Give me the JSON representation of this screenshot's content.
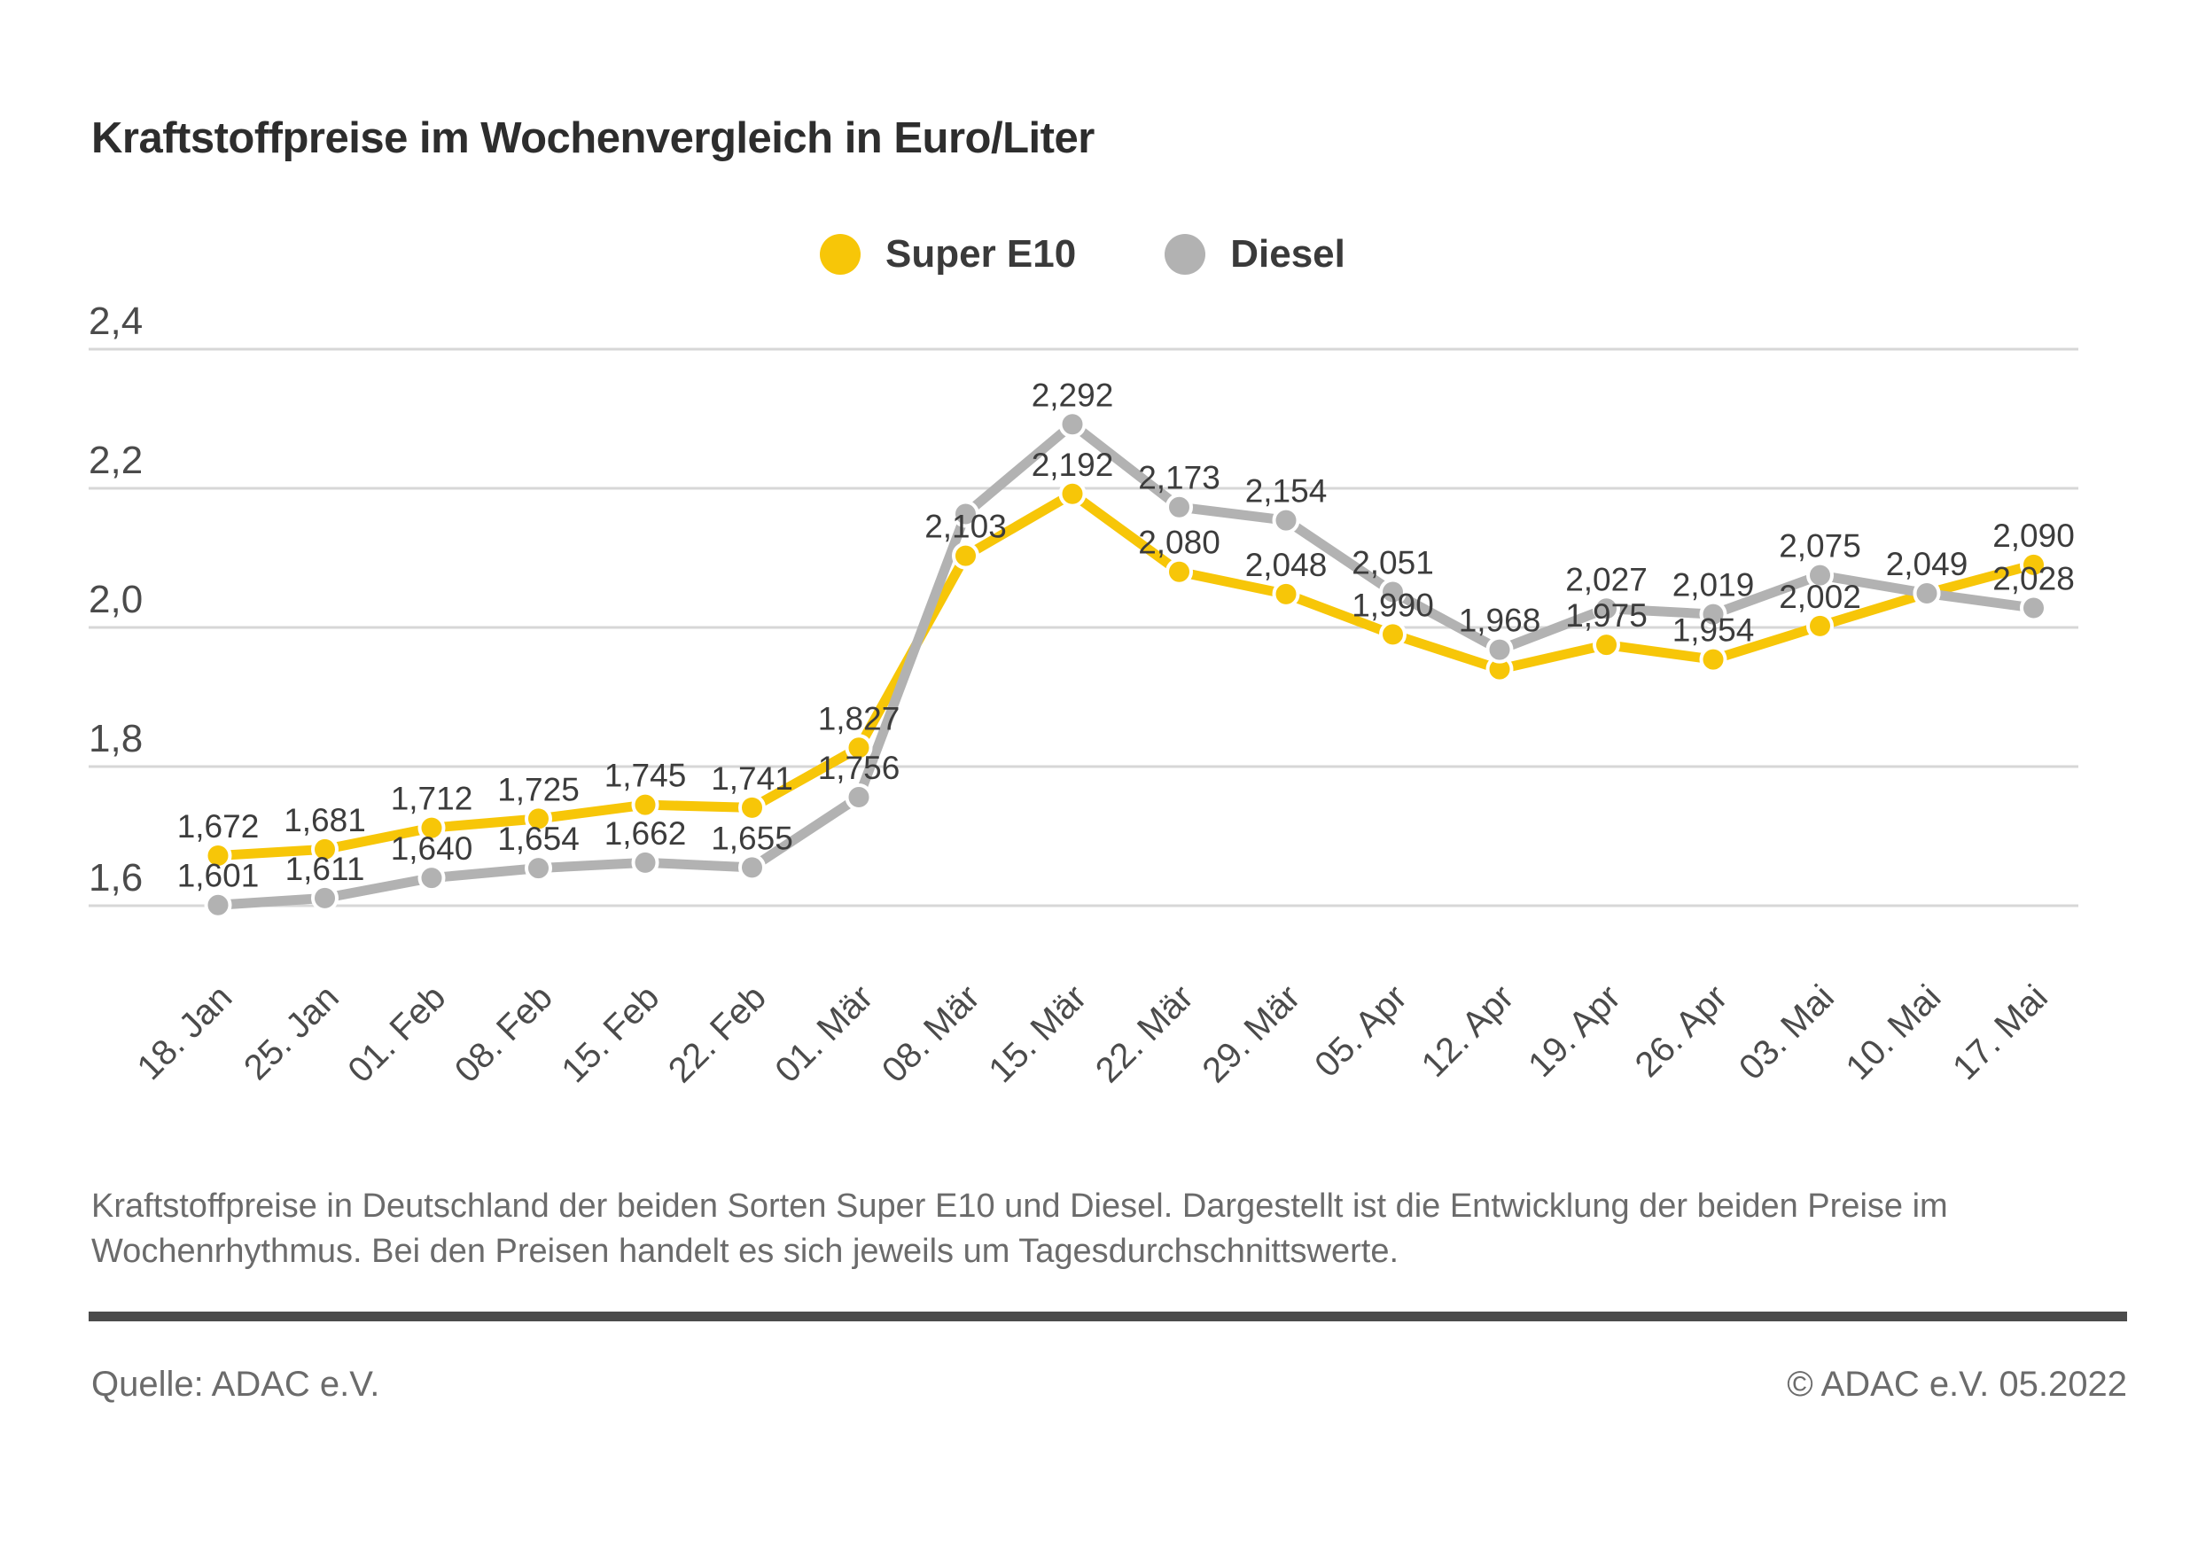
{
  "header": {
    "title": "Kraftstoffpreise im Wochenvergleich in Euro/Liter"
  },
  "chart_data": {
    "type": "line",
    "title": "Kraftstoffpreise im Wochenvergleich in Euro/Liter",
    "x": [
      "18. Jan",
      "25. Jan",
      "01. Feb",
      "08. Feb",
      "15. Feb",
      "22. Feb",
      "01. Mär",
      "08. Mär",
      "15. Mär",
      "22. Mär",
      "29. Mär",
      "05. Apr",
      "12. Apr",
      "19. Apr",
      "26. Apr",
      "03. Mai",
      "10. Mai",
      "17. Mai"
    ],
    "series": [
      {
        "name": "Super E10",
        "color": "#F7C608",
        "values": [
          1.672,
          1.681,
          1.712,
          1.725,
          1.745,
          1.741,
          1.827,
          2.103,
          2.192,
          2.08,
          2.048,
          1.99,
          1.94,
          1.975,
          1.954,
          2.002,
          2.049,
          2.09
        ],
        "labels": [
          "1,672",
          "1,681",
          "1,712",
          "1,725",
          "1,745",
          "1,741",
          "1,827",
          "2,103",
          "2,192",
          "2,080",
          "2,048",
          "1,990",
          "",
          "1,975",
          "1,954",
          "2,002",
          "2,049",
          "2,090"
        ]
      },
      {
        "name": "Diesel",
        "color": "#B2B2B2",
        "values": [
          1.601,
          1.611,
          1.64,
          1.654,
          1.662,
          1.655,
          1.756,
          2.163,
          2.292,
          2.173,
          2.154,
          2.051,
          1.968,
          2.027,
          2.019,
          2.075,
          2.049,
          2.028
        ],
        "labels": [
          "1,601",
          "1,611",
          "1,640",
          "1,654",
          "1,662",
          "1,655",
          "1,756",
          "",
          "2,292",
          "2,173",
          "2,154",
          "2,051",
          "1,968",
          "2,027",
          "2,019",
          "2,075",
          "",
          "2,028"
        ]
      }
    ],
    "ylabel": "Euro/Liter",
    "ylim": [
      1.5,
      2.45
    ],
    "yticks": [
      1.6,
      1.8,
      2.0,
      2.2,
      2.4
    ],
    "ytick_labels": [
      "1,6",
      "1,8",
      "2,0",
      "2,2",
      "2,4"
    ],
    "grid": true,
    "legend_position": "top-center",
    "decimal_separator": ","
  },
  "caption": {
    "text": "Kraftstoffpreise in Deutschland der beiden Sorten Super E10 und Diesel. Dargestellt ist die Entwicklung der beiden Preise im\nWochenrhythmus. Bei den Preisen handelt es sich jeweils um Tagesdurchschnittswerte."
  },
  "footer": {
    "source": "Quelle: ADAC e.V.",
    "copyright": "© ADAC e.V. 05.2022"
  }
}
